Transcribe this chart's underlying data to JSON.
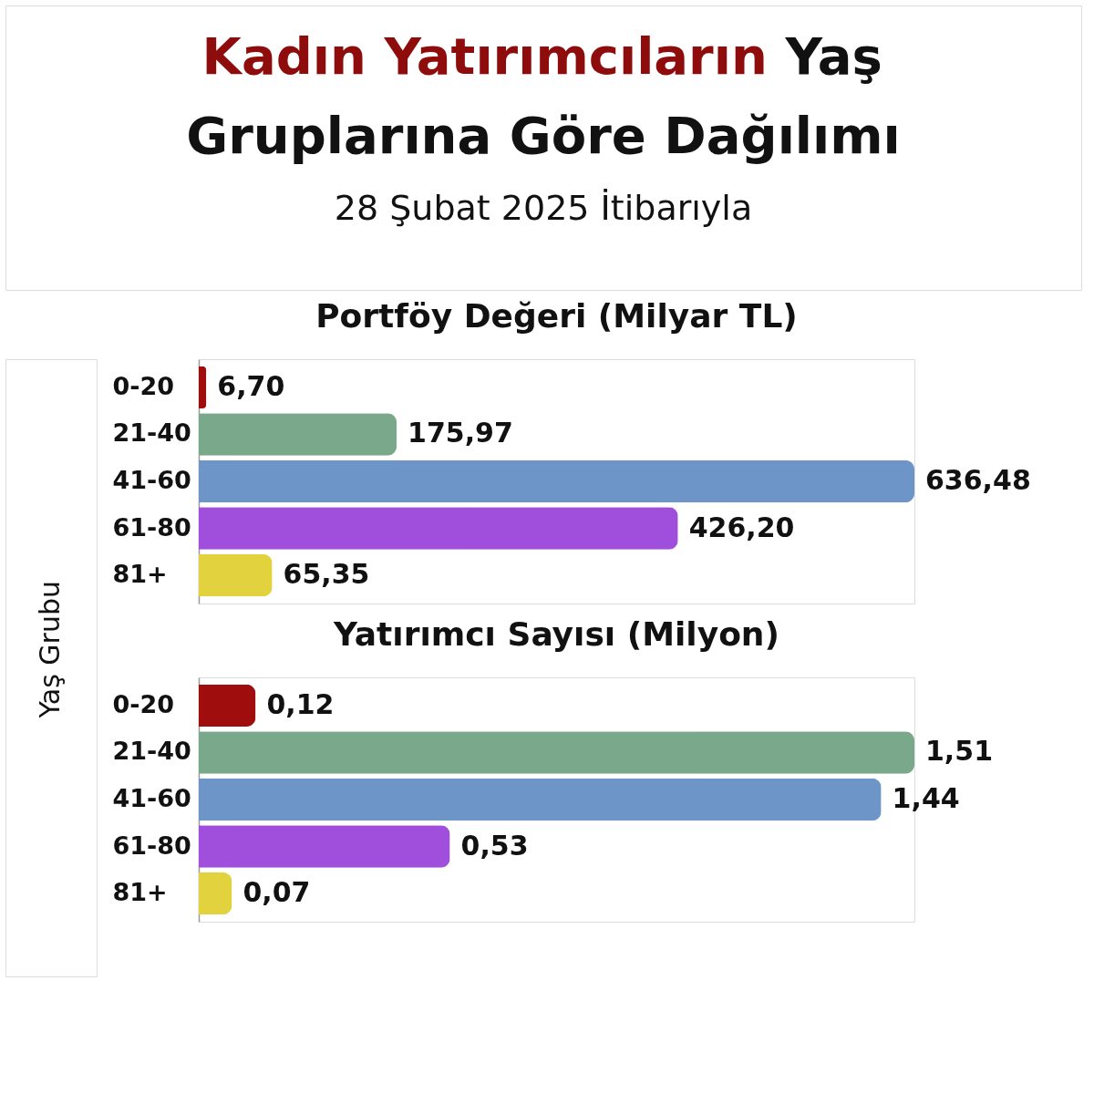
{
  "chart_data": [
    {
      "type": "other",
      "title": "Kadın Yatırımcıların Yaş Gruplarına Göre Dağılımı",
      "subtitle": "28 Şubat 2025 İtibarıyla"
    },
    {
      "type": "bar",
      "orientation": "horizontal",
      "title": "Portföy Değeri (Milyar TL)",
      "ylabel": "Yaş Grubu",
      "categories": [
        "0-20",
        "21-40",
        "41-60",
        "61-80",
        "81+"
      ],
      "values": [
        6.7,
        175.97,
        636.48,
        426.2,
        65.35
      ],
      "colors": [
        "#a00d0d",
        "#79a98a",
        "#6e95c8",
        "#a04fdc",
        "#e2d23e"
      ],
      "value_labels": [
        "6,70",
        "175,97",
        "636,48",
        "426,20",
        "65,35"
      ]
    },
    {
      "type": "bar",
      "orientation": "horizontal",
      "title": "Yatırımcı Sayısı (Milyon)",
      "categories": [
        "0-20",
        "21-40",
        "41-60",
        "61-80",
        "81+"
      ],
      "values": [
        0.12,
        1.51,
        1.44,
        0.53,
        0.07
      ],
      "colors": [
        "#a00d0d",
        "#79a98a",
        "#6e95c8",
        "#a04fdc",
        "#e2d23e"
      ],
      "value_labels": [
        "0,12",
        "1,51",
        "1,44",
        "0,53",
        "0,07"
      ]
    }
  ]
}
